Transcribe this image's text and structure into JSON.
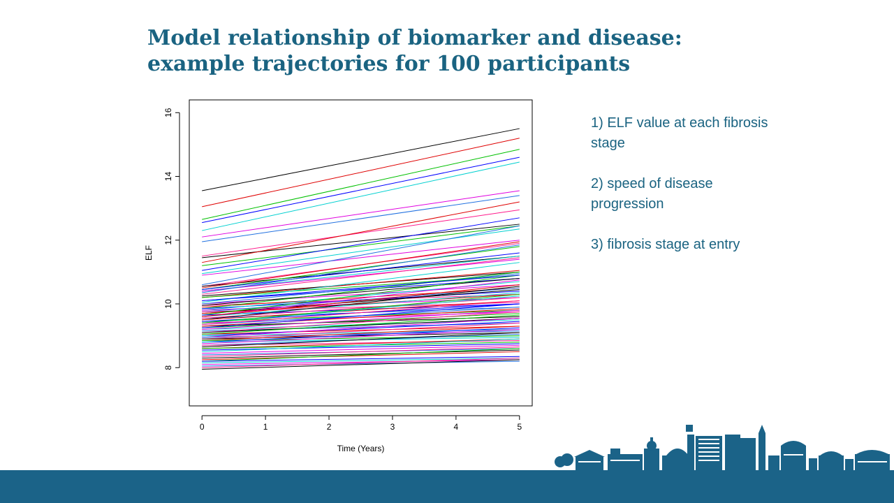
{
  "slide": {
    "title_line1": "Model relationship of biomarker and disease:",
    "title_line2": "example trajectories for 100 participants",
    "notes": [
      "1) ELF value at each fibrosis stage",
      "2) speed of disease progression",
      "3) fibrosis stage at entry"
    ]
  },
  "colors": {
    "title": "#1a6381",
    "footer": "#1b6388",
    "series_palette": [
      "#000000",
      "#df0000",
      "#00c000",
      "#0000ff",
      "#00d0d0",
      "#e000e0",
      "#2070e0",
      "#ff1a8c"
    ]
  },
  "chart_data": {
    "type": "line",
    "title": "",
    "xlabel": "Time (Years)",
    "ylabel": "ELF",
    "xlim": [
      -0.2,
      5.2
    ],
    "ylim": [
      6.8,
      16.4
    ],
    "xticks": [
      0,
      1,
      2,
      3,
      4,
      5
    ],
    "yticks": [
      8,
      10,
      12,
      14,
      16
    ],
    "grid": false,
    "legend": "none",
    "series_count": 100,
    "series_note": "100 straight trajectories, each given as [ELF at year 0, ELF at year 5]",
    "series": [
      [
        13.55,
        15.5
      ],
      [
        13.05,
        15.2
      ],
      [
        12.65,
        14.85
      ],
      [
        12.55,
        14.6
      ],
      [
        12.3,
        14.45
      ],
      [
        12.1,
        13.55
      ],
      [
        11.95,
        13.4
      ],
      [
        11.5,
        12.95
      ],
      [
        11.45,
        12.5
      ],
      [
        11.3,
        13.2
      ],
      [
        11.2,
        12.45
      ],
      [
        11.05,
        12.7
      ],
      [
        10.95,
        12.35
      ],
      [
        10.9,
        12.0
      ],
      [
        10.6,
        12.45
      ],
      [
        10.55,
        11.9
      ],
      [
        10.55,
        11.5
      ],
      [
        10.5,
        11.95
      ],
      [
        10.45,
        11.8
      ],
      [
        10.45,
        11.6
      ],
      [
        10.4,
        11.5
      ],
      [
        10.4,
        11.4
      ],
      [
        10.35,
        11.85
      ],
      [
        10.3,
        11.45
      ],
      [
        10.25,
        11.0
      ],
      [
        10.2,
        11.05
      ],
      [
        10.2,
        10.9
      ],
      [
        10.1,
        10.8
      ],
      [
        10.05,
        11.3
      ],
      [
        10.0,
        10.6
      ],
      [
        10.0,
        10.95
      ],
      [
        9.95,
        10.3
      ],
      [
        9.95,
        10.8
      ],
      [
        9.9,
        10.5
      ],
      [
        9.85,
        11.0
      ],
      [
        9.85,
        10.4
      ],
      [
        9.8,
        10.7
      ],
      [
        9.8,
        10.2
      ],
      [
        9.75,
        10.5
      ],
      [
        9.75,
        10.05
      ],
      [
        9.7,
        10.45
      ],
      [
        9.7,
        10.3
      ],
      [
        9.65,
        10.9
      ],
      [
        9.65,
        10.0
      ],
      [
        9.6,
        10.35
      ],
      [
        9.6,
        10.75
      ],
      [
        9.55,
        9.9
      ],
      [
        9.55,
        10.2
      ],
      [
        9.5,
        10.55
      ],
      [
        9.5,
        10.1
      ],
      [
        9.45,
        9.8
      ],
      [
        9.45,
        10.0
      ],
      [
        9.4,
        10.25
      ],
      [
        9.4,
        9.75
      ],
      [
        9.35,
        9.9
      ],
      [
        9.35,
        10.1
      ],
      [
        9.3,
        9.6
      ],
      [
        9.3,
        9.85
      ],
      [
        9.25,
        9.7
      ],
      [
        9.25,
        10.0
      ],
      [
        9.2,
        9.5
      ],
      [
        9.2,
        9.8
      ],
      [
        9.15,
        9.4
      ],
      [
        9.1,
        9.75
      ],
      [
        9.1,
        9.55
      ],
      [
        9.05,
        9.3
      ],
      [
        9.05,
        9.65
      ],
      [
        9.0,
        9.45
      ],
      [
        9.0,
        9.2
      ],
      [
        8.95,
        9.55
      ],
      [
        8.95,
        9.15
      ],
      [
        8.9,
        9.4
      ],
      [
        8.9,
        9.1
      ],
      [
        8.85,
        9.3
      ],
      [
        8.85,
        9.0
      ],
      [
        8.8,
        9.25
      ],
      [
        8.8,
        8.95
      ],
      [
        8.75,
        9.2
      ],
      [
        8.7,
        9.05
      ],
      [
        8.7,
        8.85
      ],
      [
        8.65,
        9.1
      ],
      [
        8.6,
        8.9
      ],
      [
        8.6,
        8.8
      ],
      [
        8.55,
        8.75
      ],
      [
        8.5,
        8.9
      ],
      [
        8.45,
        8.7
      ],
      [
        8.4,
        8.6
      ],
      [
        8.35,
        8.65
      ],
      [
        8.3,
        8.55
      ],
      [
        8.25,
        8.5
      ],
      [
        8.2,
        8.6
      ],
      [
        8.2,
        8.35
      ],
      [
        8.15,
        8.3
      ],
      [
        8.1,
        8.25
      ],
      [
        8.05,
        8.2
      ],
      [
        8.0,
        8.3
      ],
      [
        7.95,
        8.25
      ],
      [
        9.6,
        10.6
      ],
      [
        9.4,
        10.3
      ],
      [
        10.1,
        10.9
      ]
    ]
  }
}
